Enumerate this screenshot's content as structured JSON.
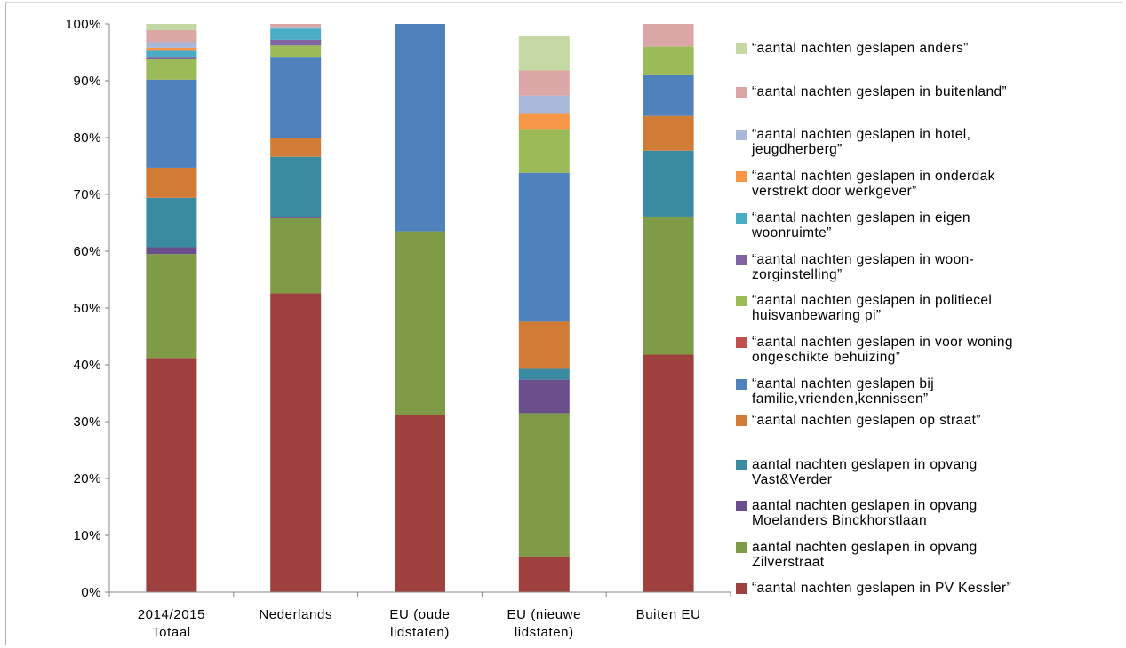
{
  "chart_data": {
    "type": "bar",
    "stacked": true,
    "title": "",
    "xlabel": "",
    "ylabel": "",
    "ylim": [
      0,
      100
    ],
    "y_ticks": [
      "0%",
      "10%",
      "20%",
      "30%",
      "40%",
      "50%",
      "60%",
      "70%",
      "80%",
      "90%",
      "100%"
    ],
    "grid": false,
    "legend_position": "right",
    "categories": [
      [
        "2014/2015",
        "Totaal"
      ],
      [
        "Nederlands"
      ],
      [
        "EU (oude",
        "lidstaten)"
      ],
      [
        "EU (nieuwe",
        "lidstaten)"
      ],
      [
        "Buiten EU"
      ]
    ],
    "series": [
      {
        "name": "“aantal nachten geslapen in PV Kessler”",
        "color": "#9e413e",
        "values": [
          41.2,
          52.6,
          31.2,
          6.3,
          41.8
        ]
      },
      {
        "name": "aantal nachten geslapen in opvang\nZilverstraat",
        "color": "#7f9b48",
        "values": [
          18.3,
          13.2,
          32.3,
          25.2,
          24.3
        ]
      },
      {
        "name": "aantal nachten geslapen in opvang\nMoelanders Binckhorstlaan",
        "color": "#6b4f8c",
        "values": [
          1.2,
          0.2,
          0,
          5.9,
          0
        ]
      },
      {
        "name": "aantal nachten geslapen in opvang\nVast&Verder",
        "color": "#3a8aa1",
        "values": [
          8.7,
          10.6,
          0,
          1.9,
          11.6
        ]
      },
      {
        "name": "“aantal nachten geslapen op straat”",
        "color": "#d07c37",
        "values": [
          5.3,
          3.3,
          0,
          8.3,
          6.1
        ]
      },
      {
        "name": "“aantal nachten geslapen bij\nfamilie,vrienden,kennissen”",
        "color": "#4f81bd",
        "values": [
          15.5,
          14.3,
          36.5,
          26.2,
          7.3
        ]
      },
      {
        "name": "“aantal nachten geslapen in voor woning\nongeschikte behuizing”",
        "color": "#c0504d",
        "values": [
          0,
          0,
          0,
          0,
          0
        ]
      },
      {
        "name": "“aantal nachten geslapen in politiecel\nhuisvanbewaring pi”",
        "color": "#9bbb59",
        "values": [
          3.7,
          2.0,
          0,
          7.7,
          4.9
        ]
      },
      {
        "name": "“aantal nachten geslapen in woon-\nzorginstelling”",
        "color": "#8064a2",
        "values": [
          0.3,
          1.0,
          0,
          0,
          0
        ]
      },
      {
        "name": "“aantal nachten geslapen in eigen\nwoonruimte”",
        "color": "#4bacc6",
        "values": [
          1.2,
          2.0,
          0,
          0,
          0
        ]
      },
      {
        "name": "“aantal nachten geslapen in onderdak\nverstrekt door werkgever”",
        "color": "#f79646",
        "values": [
          0.4,
          0,
          0,
          2.8,
          0
        ]
      },
      {
        "name": "“aantal nachten geslapen in hotel,\njeugdherberg”",
        "color": "#a9b8d8",
        "values": [
          1.0,
          0.3,
          0,
          3.1,
          0
        ]
      },
      {
        "name": "“aantal nachten geslapen in buitenland”",
        "color": "#dba6a6",
        "values": [
          2.1,
          0.5,
          0,
          4.4,
          4.0
        ]
      },
      {
        "name": "“aantal nachten geslapen anders”",
        "color": "#c5d8a4",
        "values": [
          1.1,
          0,
          0,
          6.1,
          0
        ]
      }
    ],
    "legend_order": [
      13,
      12,
      11,
      10,
      9,
      8,
      7,
      6,
      5,
      4,
      3,
      2,
      1,
      0
    ]
  }
}
